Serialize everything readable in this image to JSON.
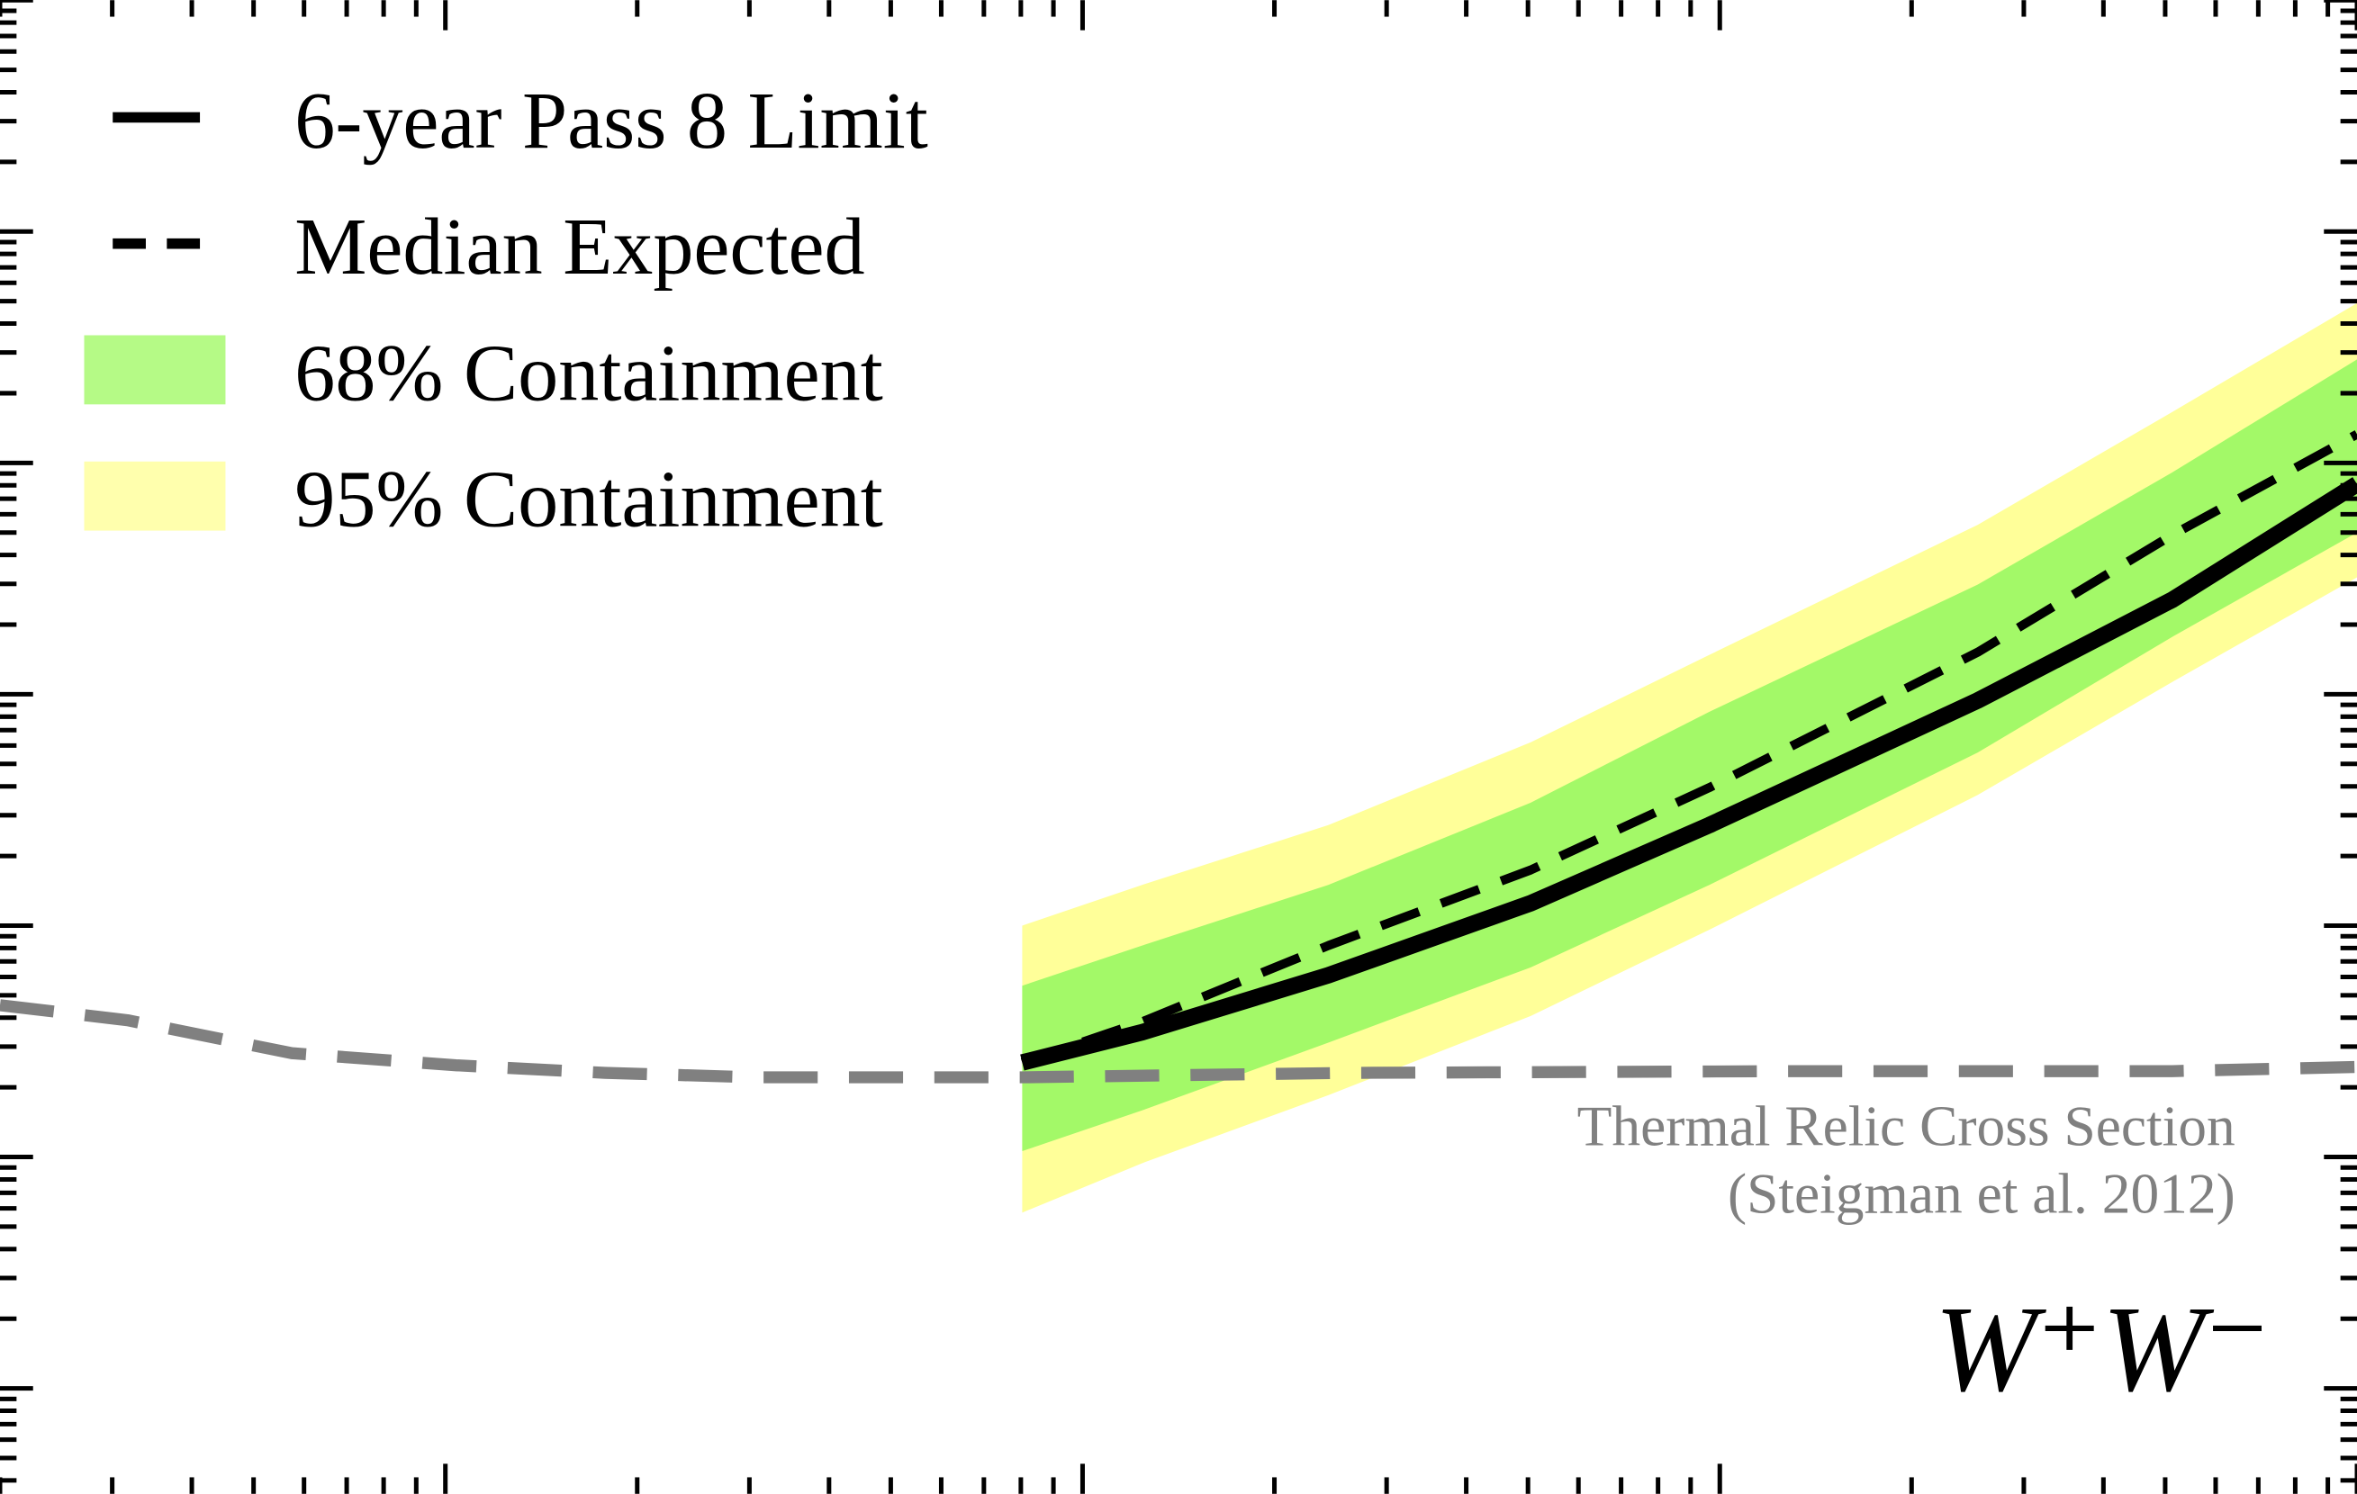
{
  "chart_data": {
    "type": "line",
    "xlog": true,
    "ylog": true,
    "xlim": [
      2,
      10000
    ],
    "ylim": [
      3.5e-28,
      1e-21
    ],
    "legend": "upper left",
    "x": [
      80.4,
      124,
      243,
      505,
      963,
      2540,
      5130,
      10000
    ],
    "series": [
      {
        "name": "6-year Pass 8 Limit",
        "color": "#000000",
        "dash": "solid",
        "values": [
          2.56e-26,
          3.46e-26,
          6.1e-26,
          1.25e-25,
          2.72e-25,
          9.4e-25,
          2.56e-24,
          8.1e-24
        ]
      },
      {
        "name": "Median Expected",
        "color": "#000000",
        "dash": "dashed",
        "values": [
          2.56e-26,
          3.84e-26,
          8.2e-26,
          1.74e-25,
          3.95e-25,
          1.52e-24,
          4.88e-24,
          1.33e-23
        ]
      }
    ],
    "bands": [
      {
        "name": "68% Containment",
        "color": "#a3f968",
        "upper": [
          5.5e-26,
          8.2e-26,
          1.5e-25,
          3.4e-25,
          8.4e-25,
          2.98e-24,
          9.1e-24,
          2.8e-23
        ],
        "lower": [
          1.06e-26,
          1.59e-26,
          3.12e-26,
          6.6e-26,
          1.5e-25,
          5.6e-25,
          1.77e-24,
          5e-24
        ]
      },
      {
        "name": "95% Containment",
        "color": "#ffff99",
        "upper": [
          1e-25,
          1.5e-25,
          2.72e-25,
          6.2e-25,
          1.48e-24,
          5.4e-24,
          1.66e-23,
          4.9e-23
        ],
        "lower": [
          5.75e-27,
          9.4e-27,
          1.85e-26,
          4.07e-26,
          9.6e-26,
          3.67e-25,
          1.13e-24,
          3.2e-24
        ]
      }
    ],
    "reference": {
      "color": "#808080",
      "dash": "dashed",
      "x": [
        2,
        3.17,
        5.74,
        10.4,
        17.8,
        30.6,
        80.6,
        264,
        1330,
        5130,
        10000
      ],
      "values": [
        4.53e-26,
        3.9e-26,
        2.81e-26,
        2.49e-26,
        2.31e-26,
        2.21e-26,
        2.21e-26,
        2.31e-26,
        2.35e-26,
        2.35e-26,
        2.45e-26
      ]
    },
    "annotations": [
      "Thermal Relic Cross Section",
      "(Steigman et al. 2012)"
    ],
    "label": "W⁺W⁻"
  }
}
